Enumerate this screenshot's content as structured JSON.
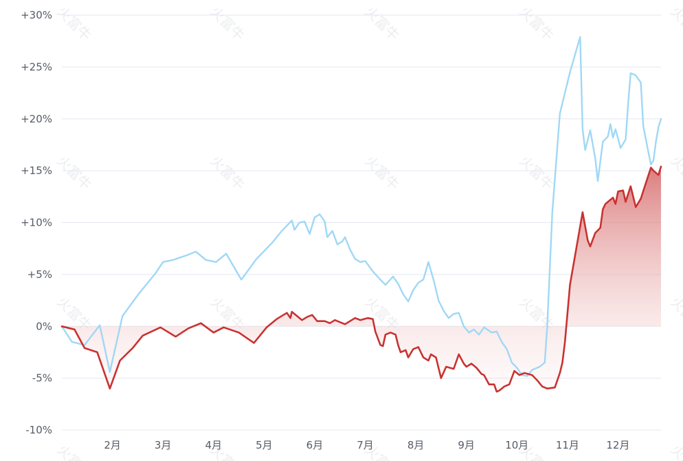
{
  "chart_data": {
    "type": "area",
    "title": "",
    "xlabel": "",
    "ylabel": "",
    "y_unit": "percent",
    "ylim": [
      -10,
      30
    ],
    "ytick_values": [
      30,
      25,
      20,
      15,
      10,
      5,
      0,
      -5,
      -10
    ],
    "ytick_labels": [
      "+30%",
      "+25%",
      "+20%",
      "+15%",
      "+10%",
      "+5%",
      "0%",
      "-5%",
      "-10%"
    ],
    "xlim": [
      0,
      11.85
    ],
    "xtick_values": [
      1,
      2,
      3,
      4,
      5,
      6,
      7,
      8,
      9,
      10,
      11
    ],
    "xtick_labels": [
      "2月",
      "3月",
      "4月",
      "5月",
      "6月",
      "7月",
      "8月",
      "9月",
      "10月",
      "11月",
      "12月"
    ],
    "grid": true,
    "legend": "none",
    "watermark": "火富牛",
    "series": [
      {
        "color": "#c83232",
        "fill": "gradient",
        "points": [
          [
            0.0,
            0.0
          ],
          [
            0.25,
            -0.3
          ],
          [
            0.45,
            -2.1
          ],
          [
            0.7,
            -2.5
          ],
          [
            0.95,
            -6.0
          ],
          [
            1.15,
            -3.3
          ],
          [
            1.4,
            -2.1
          ],
          [
            1.6,
            -0.9
          ],
          [
            1.95,
            -0.1
          ],
          [
            2.25,
            -1.0
          ],
          [
            2.5,
            -0.2
          ],
          [
            2.75,
            0.3
          ],
          [
            3.0,
            -0.6
          ],
          [
            3.2,
            -0.1
          ],
          [
            3.5,
            -0.6
          ],
          [
            3.8,
            -1.6
          ],
          [
            4.05,
            -0.1
          ],
          [
            4.25,
            0.7
          ],
          [
            4.45,
            1.3
          ],
          [
            4.52,
            0.8
          ],
          [
            4.55,
            1.4
          ],
          [
            4.65,
            1.0
          ],
          [
            4.75,
            0.6
          ],
          [
            4.85,
            0.9
          ],
          [
            4.95,
            1.1
          ],
          [
            5.05,
            0.5
          ],
          [
            5.2,
            0.5
          ],
          [
            5.3,
            0.3
          ],
          [
            5.4,
            0.6
          ],
          [
            5.5,
            0.4
          ],
          [
            5.6,
            0.2
          ],
          [
            5.7,
            0.5
          ],
          [
            5.8,
            0.8
          ],
          [
            5.9,
            0.6
          ],
          [
            6.05,
            0.8
          ],
          [
            6.15,
            0.7
          ],
          [
            6.2,
            -0.5
          ],
          [
            6.3,
            -1.8
          ],
          [
            6.35,
            -1.9
          ],
          [
            6.4,
            -0.8
          ],
          [
            6.5,
            -0.6
          ],
          [
            6.6,
            -0.8
          ],
          [
            6.65,
            -1.8
          ],
          [
            6.7,
            -2.5
          ],
          [
            6.8,
            -2.3
          ],
          [
            6.85,
            -3.0
          ],
          [
            6.95,
            -2.2
          ],
          [
            7.05,
            -2.0
          ],
          [
            7.15,
            -3.0
          ],
          [
            7.25,
            -3.3
          ],
          [
            7.3,
            -2.7
          ],
          [
            7.4,
            -3.0
          ],
          [
            7.5,
            -5.0
          ],
          [
            7.6,
            -3.9
          ],
          [
            7.75,
            -4.1
          ],
          [
            7.85,
            -2.7
          ],
          [
            7.95,
            -3.6
          ],
          [
            8.0,
            -3.9
          ],
          [
            8.1,
            -3.6
          ],
          [
            8.2,
            -4.0
          ],
          [
            8.3,
            -4.6
          ],
          [
            8.35,
            -4.7
          ],
          [
            8.45,
            -5.6
          ],
          [
            8.55,
            -5.6
          ],
          [
            8.6,
            -6.3
          ],
          [
            8.65,
            -6.2
          ],
          [
            8.75,
            -5.8
          ],
          [
            8.85,
            -5.6
          ],
          [
            8.95,
            -4.3
          ],
          [
            9.05,
            -4.7
          ],
          [
            9.15,
            -4.5
          ],
          [
            9.3,
            -4.7
          ],
          [
            9.4,
            -5.2
          ],
          [
            9.5,
            -5.8
          ],
          [
            9.6,
            -6.0
          ],
          [
            9.75,
            -5.9
          ],
          [
            9.85,
            -4.5
          ],
          [
            9.9,
            -3.5
          ],
          [
            9.95,
            -1.5
          ],
          [
            10.05,
            4.0
          ],
          [
            10.3,
            11.0
          ],
          [
            10.4,
            8.3
          ],
          [
            10.45,
            7.7
          ],
          [
            10.55,
            9.0
          ],
          [
            10.65,
            9.5
          ],
          [
            10.7,
            11.3
          ],
          [
            10.75,
            11.8
          ],
          [
            10.85,
            12.2
          ],
          [
            10.9,
            12.4
          ],
          [
            10.95,
            11.8
          ],
          [
            11.0,
            13.0
          ],
          [
            11.1,
            13.1
          ],
          [
            11.15,
            12.0
          ],
          [
            11.25,
            13.5
          ],
          [
            11.35,
            11.5
          ],
          [
            11.45,
            12.3
          ],
          [
            11.55,
            13.8
          ],
          [
            11.65,
            15.3
          ],
          [
            11.7,
            15.0
          ],
          [
            11.8,
            14.6
          ],
          [
            11.85,
            15.4
          ]
        ]
      },
      {
        "color": "#9fd8f5",
        "fill": "none",
        "points": [
          [
            0.0,
            0.0
          ],
          [
            0.2,
            -1.5
          ],
          [
            0.45,
            -1.8
          ],
          [
            0.75,
            0.1
          ],
          [
            0.95,
            -4.4
          ],
          [
            1.2,
            1.0
          ],
          [
            1.5,
            3.0
          ],
          [
            1.85,
            5.1
          ],
          [
            2.0,
            6.2
          ],
          [
            2.2,
            6.4
          ],
          [
            2.5,
            6.9
          ],
          [
            2.65,
            7.2
          ],
          [
            2.85,
            6.4
          ],
          [
            3.05,
            6.2
          ],
          [
            3.25,
            7.0
          ],
          [
            3.55,
            4.5
          ],
          [
            3.85,
            6.5
          ],
          [
            4.15,
            8.0
          ],
          [
            4.35,
            9.2
          ],
          [
            4.55,
            10.2
          ],
          [
            4.6,
            9.3
          ],
          [
            4.7,
            10.0
          ],
          [
            4.8,
            10.1
          ],
          [
            4.9,
            8.9
          ],
          [
            5.0,
            10.5
          ],
          [
            5.1,
            10.8
          ],
          [
            5.2,
            10.1
          ],
          [
            5.25,
            8.6
          ],
          [
            5.35,
            9.2
          ],
          [
            5.45,
            7.9
          ],
          [
            5.55,
            8.2
          ],
          [
            5.6,
            8.6
          ],
          [
            5.7,
            7.4
          ],
          [
            5.8,
            6.5
          ],
          [
            5.9,
            6.2
          ],
          [
            6.0,
            6.3
          ],
          [
            6.15,
            5.3
          ],
          [
            6.3,
            4.5
          ],
          [
            6.4,
            4.0
          ],
          [
            6.55,
            4.8
          ],
          [
            6.65,
            4.1
          ],
          [
            6.75,
            3.1
          ],
          [
            6.85,
            2.4
          ],
          [
            6.95,
            3.5
          ],
          [
            7.05,
            4.2
          ],
          [
            7.15,
            4.5
          ],
          [
            7.25,
            6.2
          ],
          [
            7.35,
            4.5
          ],
          [
            7.45,
            2.5
          ],
          [
            7.55,
            1.5
          ],
          [
            7.65,
            0.8
          ],
          [
            7.75,
            1.2
          ],
          [
            7.85,
            1.3
          ],
          [
            7.95,
            0.0
          ],
          [
            8.05,
            -0.6
          ],
          [
            8.15,
            -0.3
          ],
          [
            8.25,
            -0.8
          ],
          [
            8.35,
            -0.1
          ],
          [
            8.5,
            -0.6
          ],
          [
            8.6,
            -0.5
          ],
          [
            8.7,
            -1.5
          ],
          [
            8.8,
            -2.2
          ],
          [
            8.9,
            -3.5
          ],
          [
            9.0,
            -4.0
          ],
          [
            9.1,
            -4.7
          ],
          [
            9.2,
            -4.8
          ],
          [
            9.3,
            -4.2
          ],
          [
            9.45,
            -3.9
          ],
          [
            9.55,
            -3.5
          ],
          [
            9.6,
            0.0
          ],
          [
            9.7,
            11.0
          ],
          [
            9.85,
            20.5
          ],
          [
            10.05,
            24.5
          ],
          [
            10.25,
            27.9
          ],
          [
            10.3,
            19.0
          ],
          [
            10.35,
            17.0
          ],
          [
            10.45,
            18.9
          ],
          [
            10.55,
            16.2
          ],
          [
            10.6,
            14.0
          ],
          [
            10.7,
            17.8
          ],
          [
            10.8,
            18.3
          ],
          [
            10.85,
            19.5
          ],
          [
            10.9,
            18.2
          ],
          [
            10.95,
            19.0
          ],
          [
            11.05,
            17.2
          ],
          [
            11.15,
            18.0
          ],
          [
            11.2,
            21.5
          ],
          [
            11.25,
            24.4
          ],
          [
            11.35,
            24.2
          ],
          [
            11.45,
            23.5
          ],
          [
            11.5,
            19.3
          ],
          [
            11.6,
            16.8
          ],
          [
            11.65,
            15.6
          ],
          [
            11.7,
            16.0
          ],
          [
            11.75,
            17.8
          ],
          [
            11.8,
            19.2
          ],
          [
            11.85,
            20.0
          ]
        ]
      }
    ]
  }
}
